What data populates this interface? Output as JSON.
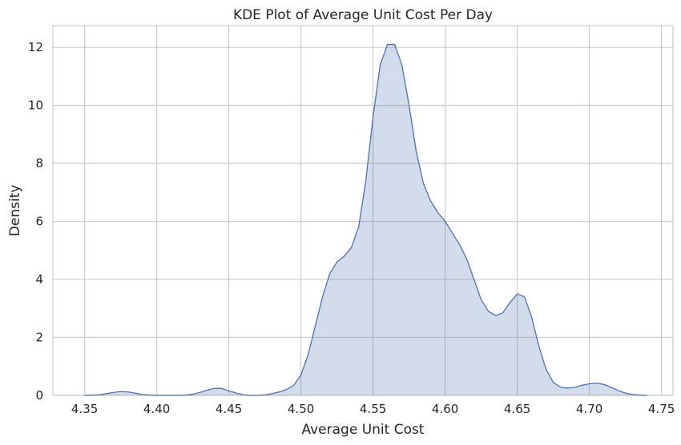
{
  "chart_data": {
    "type": "area",
    "title": "KDE Plot of Average Unit Cost Per Day",
    "xlabel": "Average Unit Cost",
    "ylabel": "Density",
    "xlim": [
      4.328,
      4.758
    ],
    "ylim": [
      0,
      12.75
    ],
    "grid": true,
    "x_ticks": [
      "4.35",
      "4.40",
      "4.45",
      "4.50",
      "4.55",
      "4.60",
      "4.65",
      "4.70",
      "4.75"
    ],
    "y_ticks": [
      "0",
      "2",
      "4",
      "6",
      "8",
      "10",
      "12"
    ],
    "colors": {
      "line": "#4c72b0",
      "fill": "#4c72b0",
      "grid": "#cccccc",
      "frame": "#cccccc"
    },
    "series": [
      {
        "x": [
          4.35,
          4.36,
          4.365,
          4.37,
          4.375,
          4.38,
          4.385,
          4.39,
          4.395,
          4.4,
          4.405,
          4.41,
          4.415,
          4.42,
          4.425,
          4.43,
          4.435,
          4.44,
          4.445,
          4.45,
          4.455,
          4.46,
          4.465,
          4.47,
          4.475,
          4.48,
          4.485,
          4.49,
          4.495,
          4.5,
          4.505,
          4.51,
          4.515,
          4.52,
          4.525,
          4.53,
          4.535,
          4.54,
          4.545,
          4.55,
          4.555,
          4.56,
          4.565,
          4.57,
          4.575,
          4.58,
          4.585,
          4.59,
          4.595,
          4.6,
          4.605,
          4.61,
          4.615,
          4.62,
          4.625,
          4.63,
          4.635,
          4.64,
          4.645,
          4.65,
          4.655,
          4.66,
          4.665,
          4.67,
          4.675,
          4.68,
          4.685,
          4.69,
          4.695,
          4.7,
          4.705,
          4.71,
          4.715,
          4.72,
          4.725,
          4.73,
          4.735,
          4.74
        ],
        "y": [
          0.0,
          0.02,
          0.06,
          0.1,
          0.13,
          0.12,
          0.08,
          0.03,
          0.01,
          0.0,
          0.0,
          0.0,
          0.0,
          0.01,
          0.04,
          0.1,
          0.18,
          0.24,
          0.24,
          0.16,
          0.08,
          0.02,
          0.0,
          0.0,
          0.02,
          0.06,
          0.12,
          0.2,
          0.35,
          0.7,
          1.4,
          2.4,
          3.4,
          4.2,
          4.6,
          4.8,
          5.1,
          5.8,
          7.4,
          9.6,
          11.4,
          12.1,
          12.1,
          11.4,
          10.0,
          8.4,
          7.3,
          6.7,
          6.3,
          6.0,
          5.6,
          5.2,
          4.7,
          4.0,
          3.3,
          2.9,
          2.75,
          2.85,
          3.2,
          3.5,
          3.4,
          2.7,
          1.7,
          0.9,
          0.45,
          0.28,
          0.25,
          0.28,
          0.35,
          0.4,
          0.42,
          0.38,
          0.28,
          0.17,
          0.08,
          0.03,
          0.01,
          0.0
        ]
      }
    ]
  }
}
